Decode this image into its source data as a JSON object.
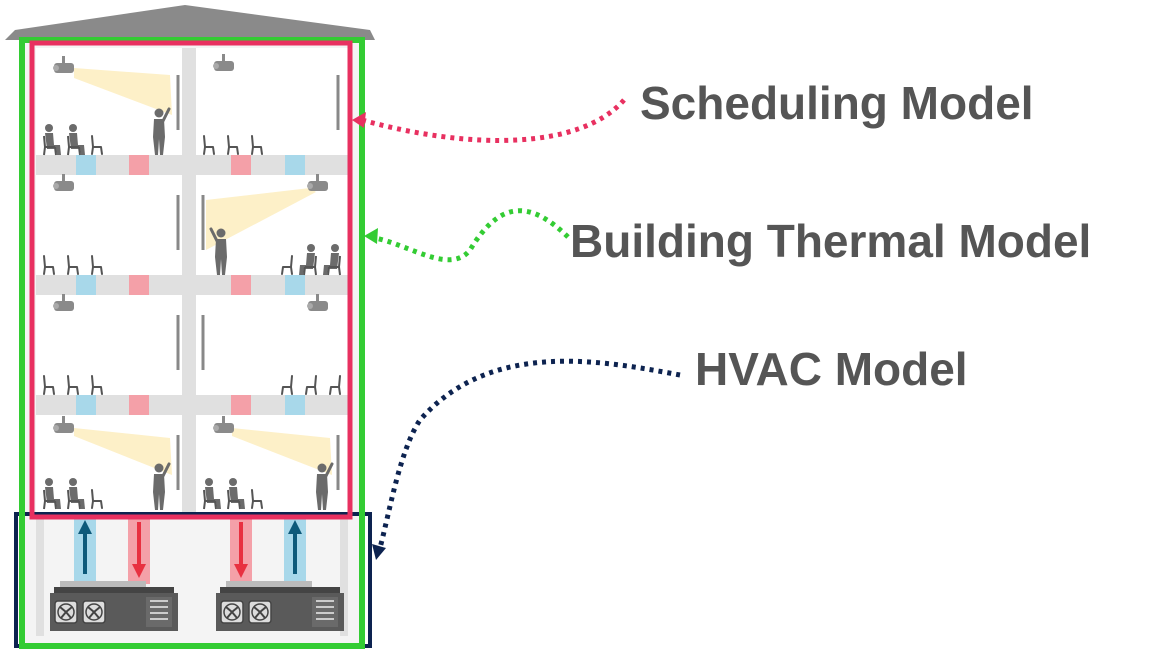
{
  "labels": {
    "scheduling": "Scheduling Model",
    "thermal": "Building Thermal Model",
    "hvac": "HVAC Model"
  },
  "colors": {
    "scheduling": "#e83060",
    "thermal": "#33cc33",
    "hvac": "#0d2350",
    "cold_duct": "#a8d8ea",
    "hot_duct": "#f4a0a8",
    "roof": "#8a8a8a",
    "slab": "#e0e0e0",
    "figure": "#6b6b6b",
    "light_beam": "#fdf0c8"
  },
  "icons": [
    "roof-icon",
    "projector-icon",
    "projection-screen-icon",
    "presenter-icon",
    "seated-person-icon",
    "chair-icon",
    "cold-vent-icon",
    "hot-vent-icon",
    "supply-arrow-icon",
    "return-arrow-icon",
    "hvac-unit-icon",
    "fan-icon"
  ]
}
